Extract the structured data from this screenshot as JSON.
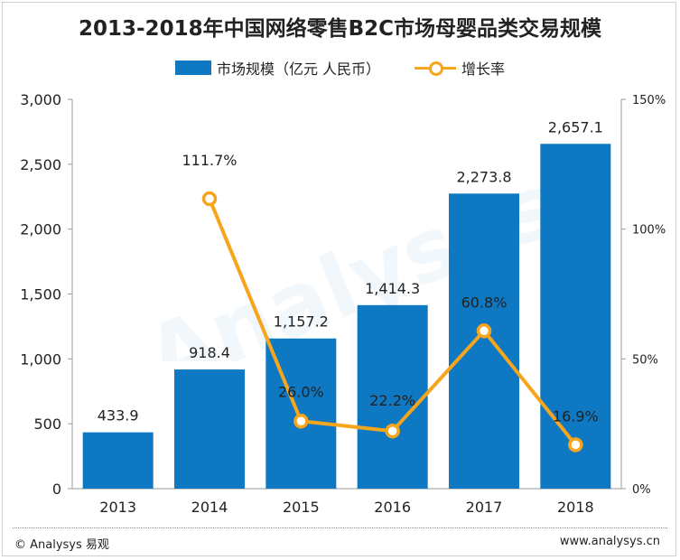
{
  "title": "2013-2018年中国网络零售B2C市场母婴品类交易规模",
  "legend": {
    "bar_label": "市场规模（亿元 人民币）",
    "line_label": "增长率"
  },
  "footer": {
    "left": "© Analysys 易观",
    "right": "www.analysys.cn"
  },
  "colors": {
    "bar": "#0e78c3",
    "line": "#f6a51c"
  },
  "chart_data": {
    "type": "bar",
    "categories": [
      "2013",
      "2014",
      "2015",
      "2016",
      "2017",
      "2018"
    ],
    "series": [
      {
        "name": "市场规模（亿元 人民币）",
        "type": "bar",
        "axis": "left",
        "values": [
          433.9,
          918.4,
          1157.2,
          1414.3,
          2273.8,
          2657.1
        ],
        "labels": [
          "433.9",
          "918.4",
          "1,157.2",
          "1,414.3",
          "2,273.8",
          "2,657.1"
        ]
      },
      {
        "name": "增长率",
        "type": "line",
        "axis": "right",
        "x": [
          "2014",
          "2015",
          "2016",
          "2017",
          "2018"
        ],
        "values": [
          111.7,
          26.0,
          22.2,
          60.8,
          16.9
        ],
        "labels": [
          "111.7%",
          "26.0%",
          "22.2%",
          "60.8%",
          "16.9%"
        ]
      }
    ],
    "y_left": {
      "range": [
        0,
        3000
      ],
      "ticks": [
        0,
        500,
        1000,
        1500,
        2000,
        2500,
        3000
      ],
      "tick_labels": [
        "0",
        "500",
        "1,000",
        "1,500",
        "2,000",
        "2,500",
        "3,000"
      ]
    },
    "y_right": {
      "range": [
        0,
        150
      ],
      "ticks": [
        0,
        50,
        100,
        150
      ],
      "tick_labels": [
        "0%",
        "50%",
        "100%",
        "150%"
      ]
    },
    "grid": false,
    "legend_position": "top"
  }
}
